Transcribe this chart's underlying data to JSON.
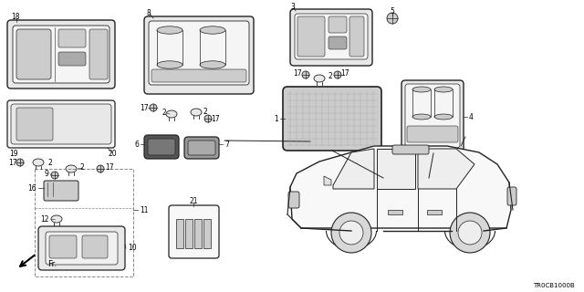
{
  "bg_color": "#ffffff",
  "fig_width": 6.4,
  "fig_height": 3.2,
  "dpi": 100,
  "watermark": "TR0CB1000B",
  "line_color": "#222222",
  "gray1": "#888888",
  "gray2": "#aaaaaa",
  "gray3": "#cccccc",
  "gray4": "#e8e8e8",
  "dark_gray": "#555555"
}
